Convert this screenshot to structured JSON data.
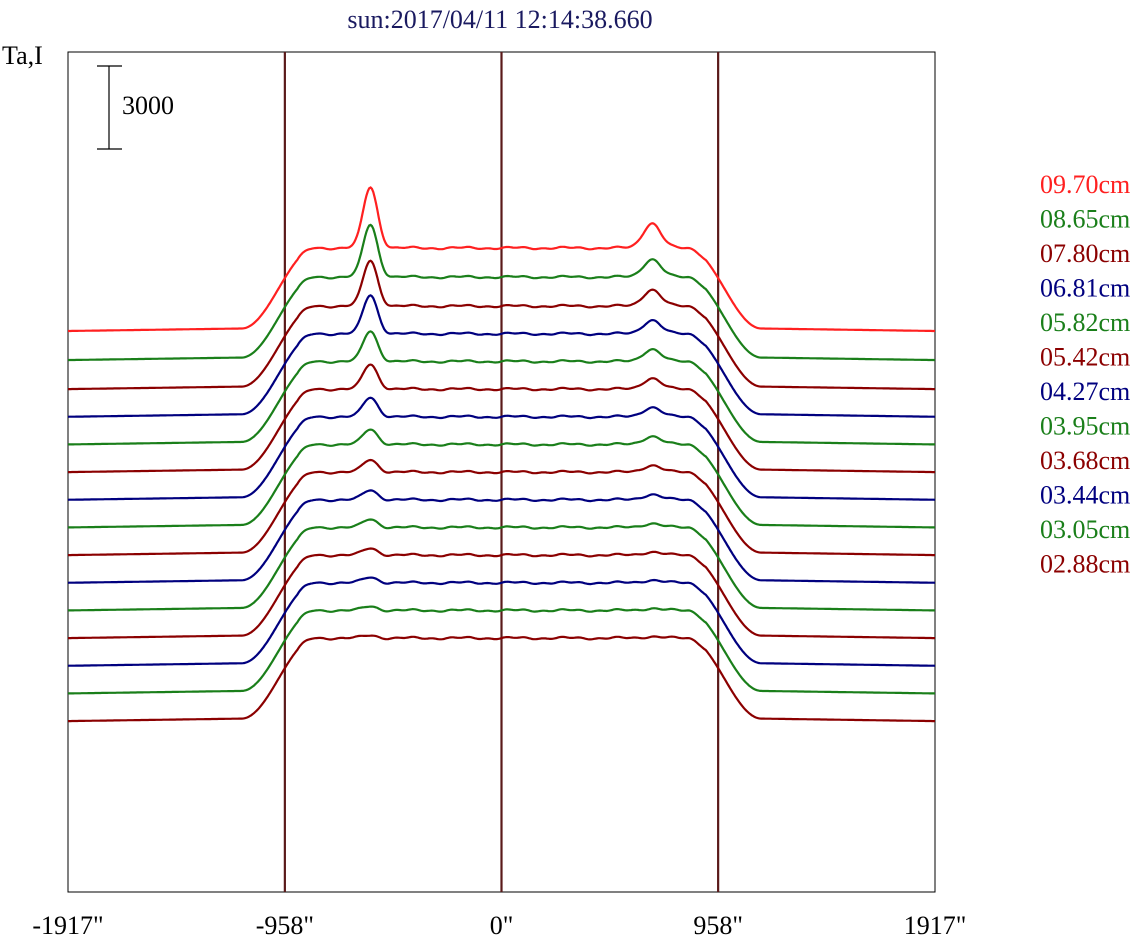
{
  "chart_data": {
    "type": "line",
    "title": "sun:2017/04/11 12:14:38.660",
    "ylabel": "Ta,I",
    "scale_bar": {
      "label": "3000",
      "value": 3000
    },
    "x_ticks": [
      {
        "value": -1917,
        "label": "-1917\""
      },
      {
        "value": -958,
        "label": "-958\""
      },
      {
        "value": 0,
        "label": "0\""
      },
      {
        "value": 958,
        "label": "958\""
      },
      {
        "value": 1917,
        "label": "1917\""
      }
    ],
    "xlim": [
      -1917,
      1917
    ],
    "vertical_lines": [
      -958,
      0,
      958
    ],
    "series_colors": [
      "#8b0000",
      "#1a7f1a",
      "#00007f"
    ],
    "label_colors": {
      "09.70cm": "#ff2020",
      "08.65cm": "#1a7f1a",
      "07.80cm": "#8b0000",
      "06.81cm": "#00007f",
      "05.82cm": "#1a7f1a",
      "05.42cm": "#8b0000",
      "04.27cm": "#00007f",
      "03.95cm": "#1a7f1a",
      "03.68cm": "#8b0000",
      "03.44cm": "#00007f",
      "03.05cm": "#1a7f1a",
      "02.88cm": "#8b0000"
    },
    "legend": [
      "09.70cm",
      "08.65cm",
      "07.80cm",
      "06.81cm",
      "05.82cm",
      "05.42cm",
      "04.27cm",
      "03.95cm",
      "03.68cm",
      "03.44cm",
      "03.05cm",
      "02.88cm"
    ],
    "series": [
      {
        "color": "#ff2020",
        "offset": 0,
        "limb_peak": 2200,
        "east_peak": 900
      },
      {
        "color": "#1a7f1a",
        "offset": -1050,
        "limb_peak": 1900,
        "east_peak": 650
      },
      {
        "color": "#8b0000",
        "offset": -2100,
        "limb_peak": 1650,
        "east_peak": 600
      },
      {
        "color": "#00007f",
        "offset": -3100,
        "limb_peak": 1400,
        "east_peak": 500
      },
      {
        "color": "#1a7f1a",
        "offset": -4100,
        "limb_peak": 1100,
        "east_peak": 450
      },
      {
        "color": "#8b0000",
        "offset": -5100,
        "limb_peak": 900,
        "east_peak": 400
      },
      {
        "color": "#00007f",
        "offset": -6100,
        "limb_peak": 700,
        "east_peak": 350
      },
      {
        "color": "#1a7f1a",
        "offset": -7100,
        "limb_peak": 550,
        "east_peak": 300
      },
      {
        "color": "#8b0000",
        "offset": -8100,
        "limb_peak": 450,
        "east_peak": 250
      },
      {
        "color": "#00007f",
        "offset": -9100,
        "limb_peak": 350,
        "east_peak": 200
      },
      {
        "color": "#1a7f1a",
        "offset": -10100,
        "limb_peak": 300,
        "east_peak": 150
      },
      {
        "color": "#8b0000",
        "offset": -11100,
        "limb_peak": 250,
        "east_peak": 120
      },
      {
        "color": "#00007f",
        "offset": -12100,
        "limb_peak": 200,
        "east_peak": 100
      },
      {
        "color": "#1a7f1a",
        "offset": -13100,
        "limb_peak": 150,
        "east_peak": 80
      },
      {
        "color": "#8b0000",
        "offset": -14100,
        "limb_peak": 100,
        "east_peak": 60
      }
    ],
    "disk_level": 3000,
    "grid": false
  }
}
